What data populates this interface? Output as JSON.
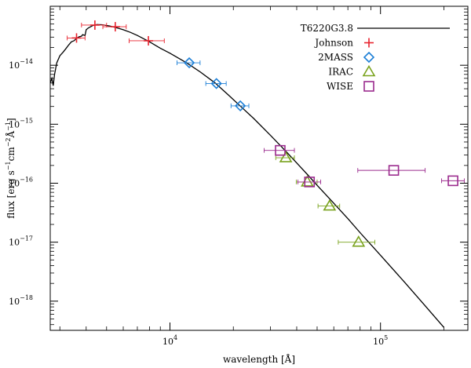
{
  "chart_data": {
    "type": "scatter",
    "xscale": "log",
    "yscale": "log",
    "xlim": [
      2700,
      260000
    ],
    "ylim": [
      3.2e-19,
      1e-13
    ],
    "xlabel": {
      "main": "wavelength [",
      "unit": "Å",
      "close": "]"
    },
    "ylabel": {
      "main": "flux [erg s",
      "sup1": "−1",
      "mid1": "cm",
      "sup2": "−2",
      "mid2": "Å",
      "sup3": "−1",
      "close": "]"
    },
    "xticks": [
      {
        "value": 10000,
        "base": "10",
        "exp": "4"
      },
      {
        "value": 100000,
        "base": "10",
        "exp": "5"
      }
    ],
    "yticks": [
      {
        "value": 1e-14,
        "base": "10",
        "exp": "−14"
      },
      {
        "value": 1e-15,
        "base": "10",
        "exp": "−15"
      },
      {
        "value": 1e-16,
        "base": "10",
        "exp": "−16"
      },
      {
        "value": 1e-17,
        "base": "10",
        "exp": "−17"
      },
      {
        "value": 1e-18,
        "base": "10",
        "exp": "−18"
      }
    ],
    "model": {
      "name": "T6220G3.8",
      "color": "#000000",
      "points": [
        [
          2700,
          5e-15
        ],
        [
          2750,
          6e-15
        ],
        [
          2790,
          4.5e-15
        ],
        [
          2830,
          7e-15
        ],
        [
          2900,
          1.1e-14
        ],
        [
          3000,
          1.45e-14
        ],
        [
          3100,
          1.65e-14
        ],
        [
          3200,
          1.9e-14
        ],
        [
          3300,
          2.2e-14
        ],
        [
          3400,
          2.5e-14
        ],
        [
          3500,
          2.6e-14
        ],
        [
          3600,
          2.85e-14
        ],
        [
          3700,
          3.05e-14
        ],
        [
          3800,
          3.1e-14
        ],
        [
          3850,
          3.3e-14
        ],
        [
          3950,
          3.2e-14
        ],
        [
          4000,
          4e-14
        ],
        [
          4100,
          4.3e-14
        ],
        [
          4300,
          4.7e-14
        ],
        [
          4500,
          4.9e-14
        ],
        [
          4800,
          4.85e-14
        ],
        [
          5200,
          4.6e-14
        ],
        [
          5600,
          4.3e-14
        ],
        [
          6000,
          4e-14
        ],
        [
          6500,
          3.6e-14
        ],
        [
          7000,
          3.2e-14
        ],
        [
          8000,
          2.5e-14
        ],
        [
          9000,
          1.95e-14
        ],
        [
          10000,
          1.6e-14
        ],
        [
          12000,
          1.1e-14
        ],
        [
          14000,
          7.6e-15
        ],
        [
          16400,
          5e-15
        ],
        [
          19000,
          3.1e-15
        ],
        [
          21700,
          2e-15
        ],
        [
          25000,
          1.25e-15
        ],
        [
          30000,
          6.5e-16
        ],
        [
          34000,
          4.1e-16
        ],
        [
          36000,
          3.3e-16
        ],
        [
          40000,
          2.2e-16
        ],
        [
          45000,
          1.4e-16
        ],
        [
          50000,
          9.2e-17
        ],
        [
          58000,
          5.2e-17
        ],
        [
          70000,
          2.5e-17
        ],
        [
          80000,
          1.45e-17
        ],
        [
          100000,
          6e-18
        ],
        [
          130000,
          2.1e-18
        ],
        [
          160000,
          9e-19
        ],
        [
          200000,
          3.6e-19
        ]
      ]
    },
    "series": [
      {
        "name": "Johnson",
        "marker": "plus",
        "color": "#e8232e",
        "points": [
          {
            "x": 3600,
            "y": 2.9e-14,
            "xerr": [
              3250,
              3950
            ]
          },
          {
            "x": 4400,
            "y": 4.8e-14,
            "xerr": [
              3800,
              5000
            ]
          },
          {
            "x": 5500,
            "y": 4.5e-14,
            "xerr": [
              4800,
              6200
            ]
          },
          {
            "x": 7900,
            "y": 2.6e-14,
            "xerr": [
              6400,
              9400
            ]
          }
        ]
      },
      {
        "name": "2MASS",
        "marker": "diamond",
        "color": "#1d7fd6",
        "points": [
          {
            "x": 12350,
            "y": 1.1e-14,
            "xerr": [
              10800,
              13900
            ]
          },
          {
            "x": 16620,
            "y": 4.9e-15,
            "xerr": [
              14800,
              18500
            ]
          },
          {
            "x": 21590,
            "y": 2.05e-15,
            "xerr": [
              19500,
              23700
            ]
          }
        ]
      },
      {
        "name": "IRAC",
        "marker": "triangle",
        "color": "#7aa31e",
        "points": [
          {
            "x": 35500,
            "y": 2.7e-16,
            "xerr": [
              31800,
              39000
            ]
          },
          {
            "x": 44900,
            "y": 1.05e-16,
            "xerr": [
              39800,
              50000
            ]
          },
          {
            "x": 57300,
            "y": 4.1e-17,
            "xerr": [
              50500,
              64000
            ]
          },
          {
            "x": 78700,
            "y": 1e-17,
            "xerr": [
              63000,
              94000
            ]
          }
        ]
      },
      {
        "name": "WISE",
        "marker": "square",
        "color": "#9b2b8e",
        "points": [
          {
            "x": 33400,
            "y": 3.6e-16,
            "xerr": [
              28000,
              39000
            ]
          },
          {
            "x": 46000,
            "y": 1.05e-16,
            "xerr": [
              40500,
              52000
            ]
          },
          {
            "x": 115600,
            "y": 1.65e-16,
            "xerr": [
              78000,
              163000
            ]
          },
          {
            "x": 221000,
            "y": 1.1e-16,
            "xerr": [
              195000,
              250000
            ]
          }
        ]
      }
    ],
    "legend": {
      "position": "top-right"
    }
  }
}
